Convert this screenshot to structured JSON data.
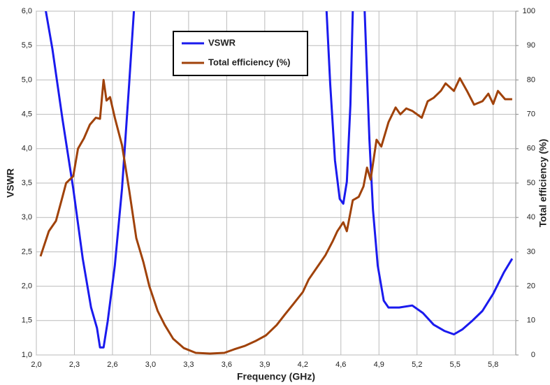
{
  "chart_data": {
    "type": "line",
    "xlabel": "Frequency (GHz)",
    "ylabel": "VSWR",
    "y2label": "Total efficiency (%)",
    "xlim": [
      2,
      6.03
    ],
    "ylim": [
      1,
      6
    ],
    "y2lim": [
      0,
      100
    ],
    "grid": true,
    "legend": "top",
    "xticks": [
      {
        "value": 2.0,
        "label": "2,0"
      },
      {
        "value": 2.32,
        "label": "2,3"
      },
      {
        "value": 2.64,
        "label": "2,6"
      },
      {
        "value": 2.96,
        "label": "3,0"
      },
      {
        "value": 3.28,
        "label": "3,3"
      },
      {
        "value": 3.6,
        "label": "3,6"
      },
      {
        "value": 3.92,
        "label": "3,9"
      },
      {
        "value": 4.24,
        "label": "4,2"
      },
      {
        "value": 4.56,
        "label": "4,6"
      },
      {
        "value": 4.88,
        "label": "4,9"
      },
      {
        "value": 5.2,
        "label": "5,2"
      },
      {
        "value": 5.52,
        "label": "5,5"
      },
      {
        "value": 5.84,
        "label": "5,8"
      }
    ],
    "yticks": [
      {
        "value": 1.0,
        "label": "1,0"
      },
      {
        "value": 1.5,
        "label": "1,5"
      },
      {
        "value": 2.0,
        "label": "2,0"
      },
      {
        "value": 2.5,
        "label": "2,5"
      },
      {
        "value": 3.0,
        "label": "3,0"
      },
      {
        "value": 3.5,
        "label": "3,5"
      },
      {
        "value": 4.0,
        "label": "4,0"
      },
      {
        "value": 4.5,
        "label": "4,5"
      },
      {
        "value": 5.0,
        "label": "5,0"
      },
      {
        "value": 5.5,
        "label": "5,5"
      },
      {
        "value": 6.0,
        "label": "6,0"
      }
    ],
    "y2ticks": [
      0,
      10,
      20,
      30,
      40,
      50,
      60,
      70,
      80,
      90,
      100
    ],
    "series": [
      {
        "name": "VSWR",
        "color": "#1a1aee",
        "x": [
          2.0,
          2.08,
          2.135,
          2.22,
          2.31,
          2.39,
          2.46,
          2.51,
          2.535,
          2.565,
          2.6,
          2.66,
          2.72,
          2.78,
          2.82,
          2.84,
          4.43,
          4.44,
          4.47,
          4.51,
          4.55,
          4.58,
          4.61,
          4.64,
          4.66,
          4.67,
          4.75,
          4.76,
          4.8,
          4.83,
          4.87,
          4.92,
          4.96,
          5.05,
          5.16,
          5.25,
          5.34,
          5.43,
          5.51,
          5.58,
          5.66,
          5.75,
          5.84,
          5.93,
          6.0
        ],
        "values": [
          6.8,
          6.0,
          5.45,
          4.43,
          3.42,
          2.4,
          1.69,
          1.39,
          1.11,
          1.11,
          1.49,
          2.3,
          3.42,
          4.94,
          6.0,
          7,
          7,
          6.0,
          4.94,
          3.83,
          3.27,
          3.2,
          3.52,
          4.64,
          6.0,
          7,
          7,
          6.0,
          4.13,
          3.11,
          2.3,
          1.79,
          1.69,
          1.69,
          1.72,
          1.61,
          1.44,
          1.35,
          1.3,
          1.37,
          1.49,
          1.64,
          1.89,
          2.2,
          2.4
        ]
      },
      {
        "name": "Total efficiency (%)",
        "color": "#a0420a",
        "axis": "y2",
        "x": [
          2.035,
          2.105,
          2.165,
          2.22,
          2.25,
          2.31,
          2.35,
          2.4,
          2.45,
          2.5,
          2.535,
          2.565,
          2.59,
          2.62,
          2.66,
          2.72,
          2.78,
          2.84,
          2.9,
          2.95,
          3.02,
          3.08,
          3.15,
          3.24,
          3.34,
          3.46,
          3.58,
          3.66,
          3.75,
          3.84,
          3.93,
          4.02,
          4.09,
          4.16,
          4.24,
          4.29,
          4.37,
          4.43,
          4.49,
          4.53,
          4.58,
          4.61,
          4.66,
          4.71,
          4.75,
          4.78,
          4.81,
          4.86,
          4.9,
          4.96,
          5.02,
          5.06,
          5.11,
          5.16,
          5.24,
          5.29,
          5.34,
          5.4,
          5.44,
          5.51,
          5.56,
          5.62,
          5.68,
          5.75,
          5.8,
          5.84,
          5.88,
          5.94,
          6.0
        ],
        "values": [
          28.7,
          36,
          39,
          46,
          50,
          52,
          60,
          63,
          67,
          69,
          68.7,
          80,
          74,
          75,
          69,
          61,
          48,
          34,
          27,
          20,
          12.8,
          8.7,
          4.7,
          2,
          0.6,
          0.4,
          0.6,
          1.6,
          2.6,
          4,
          5.7,
          8.7,
          11.8,
          14.8,
          18.3,
          22,
          26,
          29,
          33,
          36,
          38.6,
          36,
          45,
          46,
          49,
          54.5,
          51,
          62.6,
          60.6,
          67.7,
          72,
          70,
          71.7,
          71,
          69,
          73.8,
          74.8,
          76.8,
          79,
          76.8,
          80.5,
          76.8,
          72.8,
          73.8,
          76,
          73,
          76.8,
          74.4,
          74.4
        ]
      }
    ]
  }
}
